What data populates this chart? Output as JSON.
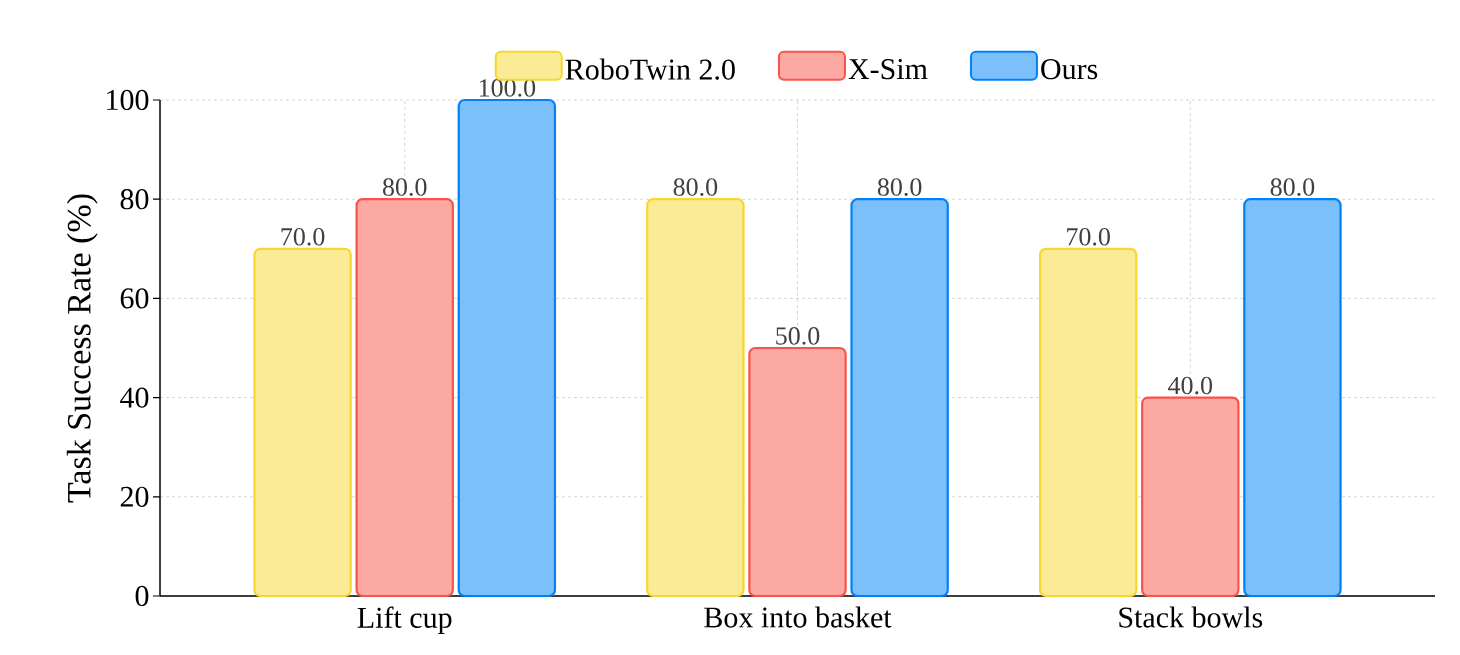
{
  "chart_data": {
    "type": "bar",
    "ylabel": "Task Success Rate (%)",
    "categories": [
      "Lift cup",
      "Box into basket",
      "Stack bowls"
    ],
    "series": [
      {
        "name": "RoboTwin 2.0",
        "color": "#fbeb96",
        "values": [
          70,
          80,
          70
        ],
        "value_labels": [
          "70.0",
          "80.0",
          "70.0"
        ]
      },
      {
        "name": "X-Sim",
        "color": "#fca9a4",
        "values": [
          80,
          50,
          40
        ],
        "value_labels": [
          "80.0",
          "50.0",
          "40.0"
        ]
      },
      {
        "name": "Ours",
        "color": "#7cc0fb",
        "values": [
          100,
          80,
          80
        ],
        "value_labels": [
          "100.0",
          "80.0",
          "80.0"
        ]
      }
    ],
    "ylim": [
      0,
      100
    ],
    "yticks": [
      0,
      20,
      40,
      60,
      80,
      100
    ],
    "grid": true,
    "legend": "top"
  }
}
